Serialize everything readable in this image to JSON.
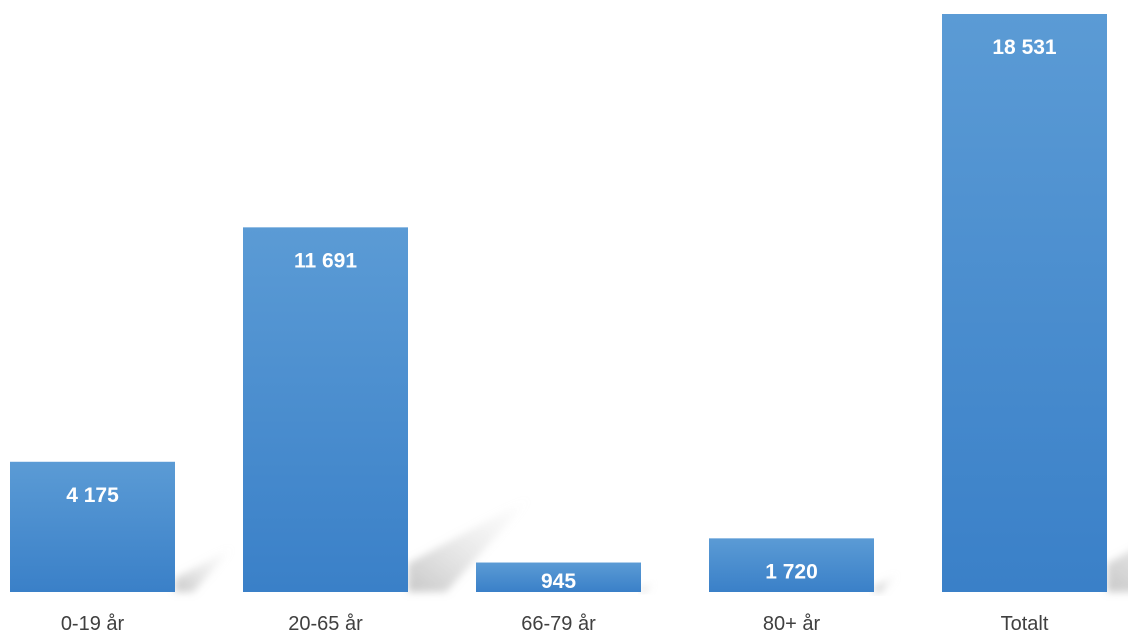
{
  "chart_data": {
    "type": "bar",
    "title": "",
    "xlabel": "",
    "ylabel": "",
    "categories": [
      "0-19 år",
      "20-65 år",
      "66-79 år",
      "80+ år",
      "Totalt"
    ],
    "values": [
      4175,
      11691,
      945,
      1720,
      18531
    ],
    "data_labels": [
      "4 175",
      "11 691",
      "945",
      "1 720",
      "18 531"
    ],
    "ylim": [
      0,
      18531
    ],
    "grid": false,
    "legend": "none",
    "bar_color_top": "#5b9bd5",
    "bar_color_bottom": "#3a80c8",
    "label_color": "#ffffff",
    "category_color": "#404040",
    "shadow_color": "#bfbfbf"
  }
}
